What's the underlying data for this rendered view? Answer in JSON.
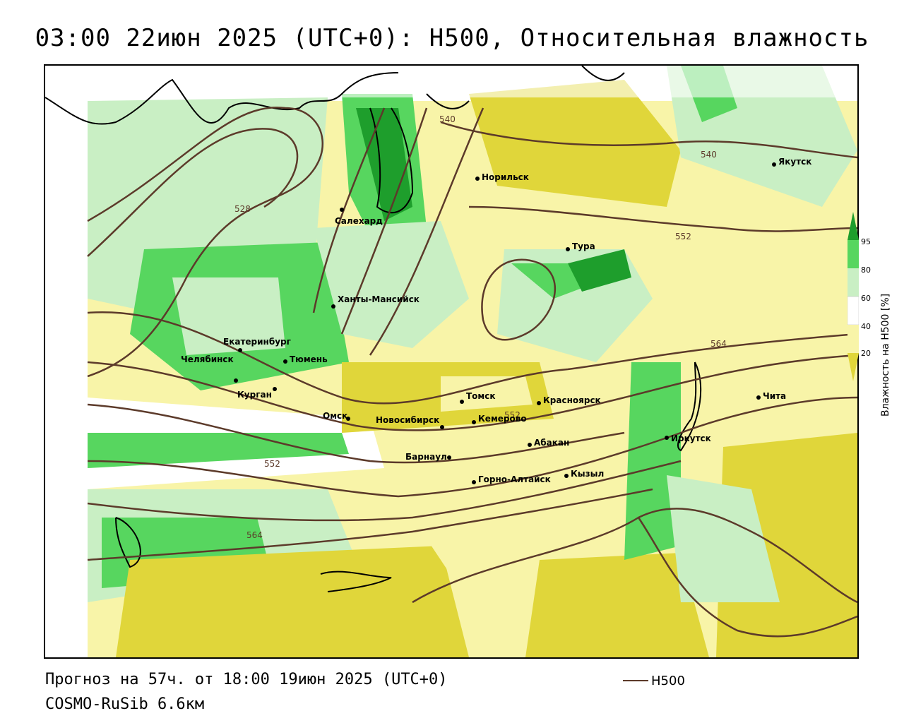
{
  "title": "03:00 22июн 2025 (UTC+0): H500, Относительная влажность",
  "footer": {
    "forecast": "Прогноз на 57ч. от 18:00 19июн 2025 (UTC+0)",
    "model": "COSMO-RuSib 6.6км"
  },
  "legend": {
    "h500_label": "H500"
  },
  "colorbar": {
    "title": "Влажность на H500 [%]",
    "ticks": [
      "95",
      "80",
      "60",
      "40",
      "20"
    ],
    "colors": {
      "very_dry": "#e0d63a",
      "dry": "#f8f4a8",
      "neutral": "#ffffff",
      "moist": "#c9efc4",
      "wet": "#57d65f",
      "very_wet": "#1e9e2c"
    }
  },
  "contour_color": "#5c3a2a",
  "contour_labels": [
    "540",
    "540",
    "528",
    "552",
    "564",
    "552",
    "552",
    "564"
  ],
  "cities": [
    {
      "name": "Якутск"
    },
    {
      "name": "Норильск"
    },
    {
      "name": "Салехард"
    },
    {
      "name": "Тура"
    },
    {
      "name": "Ханты-Мансийск"
    },
    {
      "name": "Екатеринбург"
    },
    {
      "name": "Тюмень"
    },
    {
      "name": "Челябинск"
    },
    {
      "name": "Курган"
    },
    {
      "name": "Омск"
    },
    {
      "name": "Новосибирск"
    },
    {
      "name": "Томск"
    },
    {
      "name": "Кемерово"
    },
    {
      "name": "Красноярск"
    },
    {
      "name": "Барнаул"
    },
    {
      "name": "Абакан"
    },
    {
      "name": "Горно-Алтайск"
    },
    {
      "name": "Кызыл"
    },
    {
      "name": "Иркутск"
    },
    {
      "name": "Чита"
    }
  ]
}
